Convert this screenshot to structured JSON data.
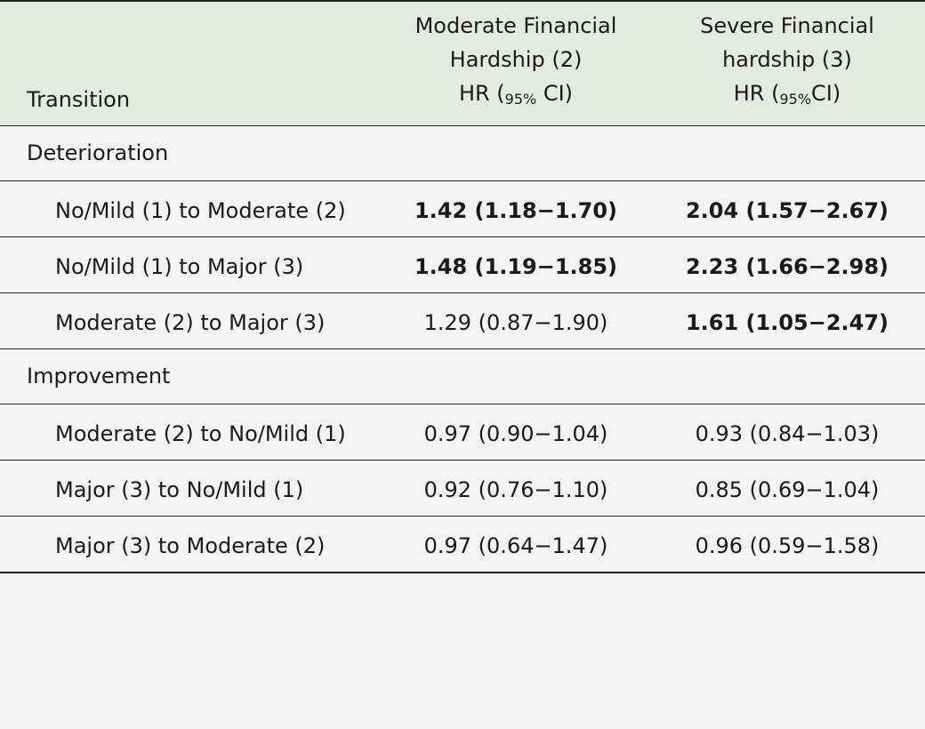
{
  "table": {
    "headers": {
      "col1": "Transition",
      "col2": {
        "line1": "Moderate Financial",
        "line2": "Hardship (2)",
        "hr": "HR (",
        "sub": "95%",
        "ci": " CI)"
      },
      "col3": {
        "line1": "Severe Financial",
        "line2": "hardship (3)",
        "hr": "HR (",
        "sub": "95%",
        "ci": "CI)"
      }
    },
    "sections": [
      {
        "title": "Deterioration",
        "rows": [
          {
            "label": "No/Mild (1) to Moderate (2)",
            "moderate": "1.42 (1.18−1.70)",
            "moderate_bold": true,
            "severe": "2.04 (1.57−2.67)",
            "severe_bold": true
          },
          {
            "label": "No/Mild (1) to Major (3)",
            "moderate": "1.48 (1.19−1.85)",
            "moderate_bold": true,
            "severe": "2.23 (1.66−2.98)",
            "severe_bold": true
          },
          {
            "label": "Moderate (2) to Major (3)",
            "moderate": "1.29 (0.87−1.90)",
            "moderate_bold": false,
            "severe": "1.61 (1.05−2.47)",
            "severe_bold": true
          }
        ]
      },
      {
        "title": "Improvement",
        "rows": [
          {
            "label": "Moderate (2) to No/Mild (1)",
            "moderate": "0.97 (0.90−1.04)",
            "moderate_bold": false,
            "severe": "0.93 (0.84−1.03)",
            "severe_bold": false
          },
          {
            "label": "Major (3) to No/Mild (1)",
            "moderate": "0.92 (0.76−1.10)",
            "moderate_bold": false,
            "severe": "0.85 (0.69−1.04)",
            "severe_bold": false
          },
          {
            "label": "Major (3) to Moderate (2)",
            "moderate": "0.97 (0.64−1.47)",
            "moderate_bold": false,
            "severe": "0.96 (0.59−1.58)",
            "severe_bold": false
          }
        ]
      }
    ]
  }
}
